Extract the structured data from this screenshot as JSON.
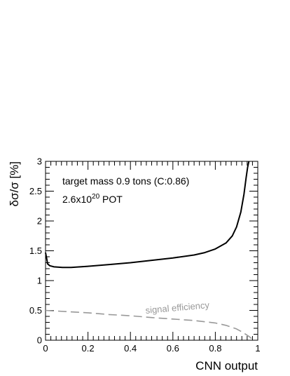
{
  "chart_data": {
    "type": "line",
    "xlabel": "CNN output",
    "ylabel": "δσ/σ [%]",
    "xlim": [
      0,
      1
    ],
    "ylim": [
      0,
      3
    ],
    "x_ticks": [
      "0",
      "0.2",
      "0.4",
      "0.6",
      "0.8",
      "1"
    ],
    "y_ticks": [
      "0",
      "0.5",
      "1",
      "1.5",
      "2",
      "2.5",
      "3"
    ],
    "x_tick_values": [
      0,
      0.2,
      0.4,
      0.6,
      0.8,
      1
    ],
    "y_tick_values": [
      0,
      0.5,
      1,
      1.5,
      2,
      2.5,
      3
    ],
    "annotations": {
      "line1": "target mass 0.9 tons (C:0.86)",
      "line2_base": "2.6x10",
      "line2_exp": "20",
      "line2_suffix": " POT"
    },
    "grid": false,
    "series": [
      {
        "color": "#000000",
        "style": "solid",
        "x": [
          0.0,
          0.005,
          0.01,
          0.02,
          0.04,
          0.08,
          0.12,
          0.2,
          0.3,
          0.4,
          0.5,
          0.6,
          0.7,
          0.75,
          0.8,
          0.85,
          0.88,
          0.9,
          0.92,
          0.935,
          0.945,
          0.952,
          0.958
        ],
        "y": [
          1.47,
          1.38,
          1.28,
          1.25,
          1.23,
          1.22,
          1.22,
          1.24,
          1.27,
          1.3,
          1.34,
          1.38,
          1.43,
          1.47,
          1.53,
          1.63,
          1.75,
          1.9,
          2.15,
          2.45,
          2.72,
          2.9,
          3.0
        ]
      },
      {
        "name": "signal efficiency",
        "color": "#999999",
        "style": "dashed",
        "x": [
          0.0,
          0.1,
          0.2,
          0.3,
          0.4,
          0.5,
          0.6,
          0.7,
          0.8,
          0.85,
          0.9,
          0.93,
          0.96,
          0.98
        ],
        "y": [
          0.5,
          0.48,
          0.46,
          0.43,
          0.41,
          0.38,
          0.355,
          0.33,
          0.29,
          0.25,
          0.19,
          0.13,
          0.06,
          0.0
        ]
      }
    ]
  }
}
